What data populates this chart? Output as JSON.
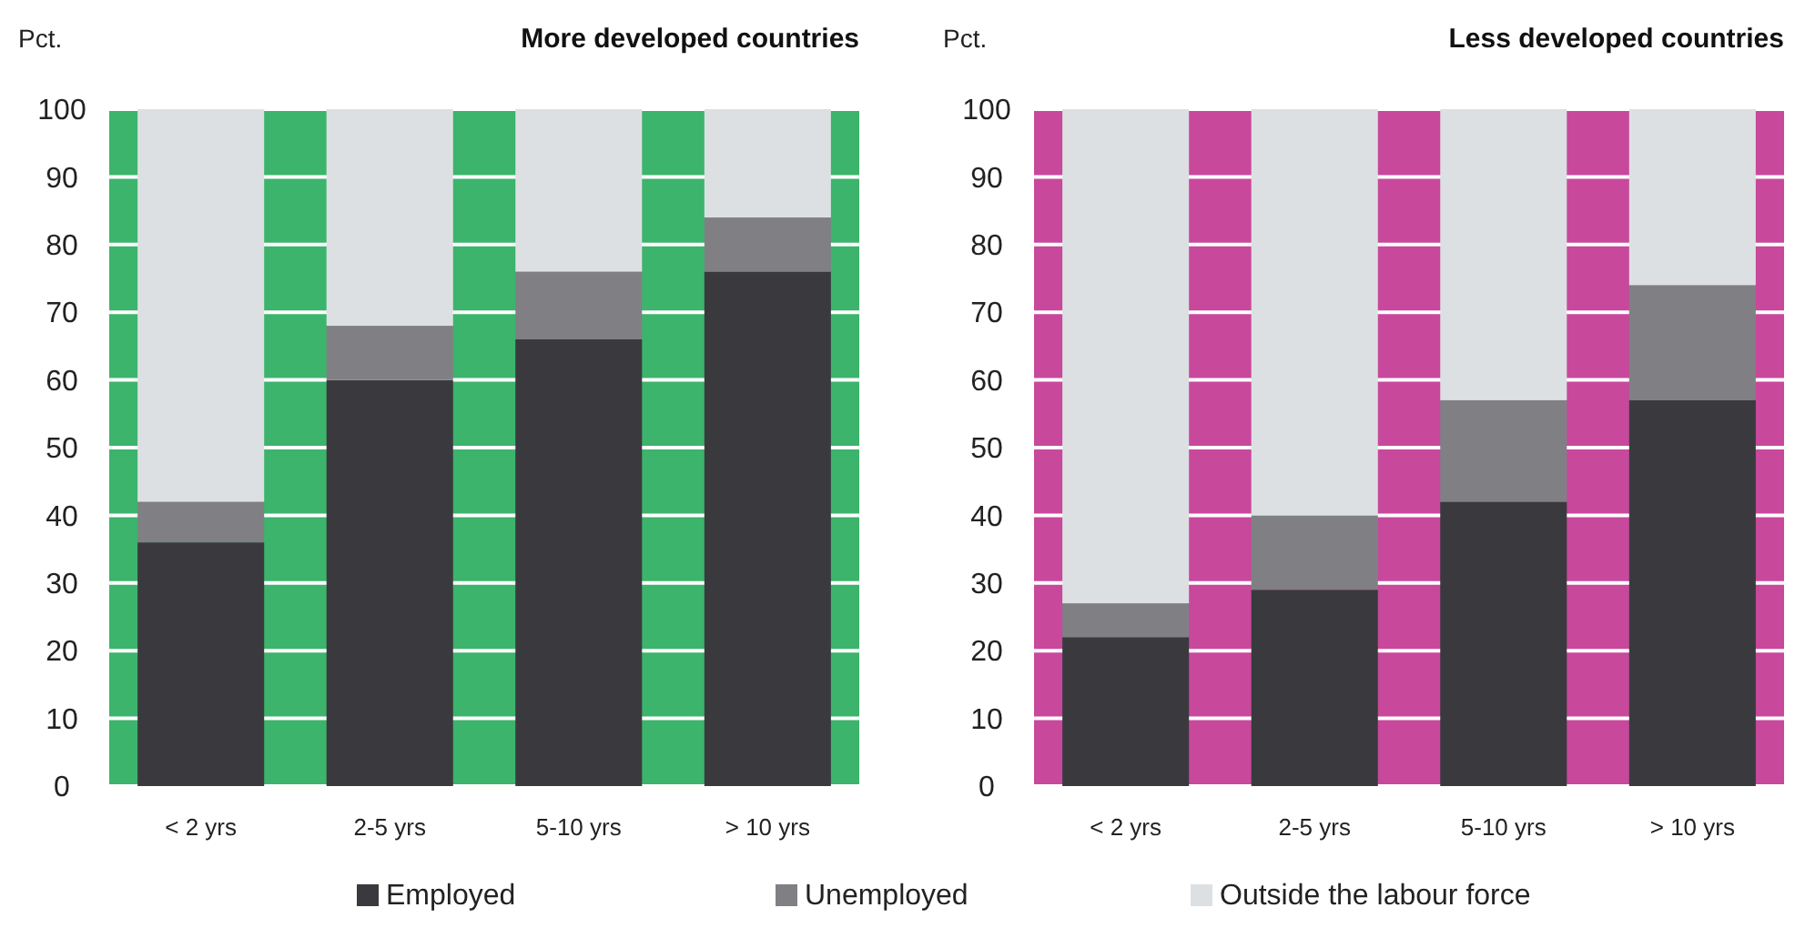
{
  "chart_data": [
    {
      "type": "bar",
      "title": "More developed countries",
      "ylabel": "Pct.",
      "categories": [
        "< 2 yrs",
        "2-5 yrs",
        "5-10 yrs",
        "> 10 yrs"
      ],
      "stacked": true,
      "ylim": [
        0,
        100
      ],
      "yticks": [
        0,
        10,
        20,
        30,
        40,
        50,
        60,
        70,
        80,
        90,
        100
      ],
      "grid": "y",
      "legend": "bottom",
      "bands": [
        {
          "axis": "y",
          "from": 0,
          "to": 100,
          "color": "#3cb46c"
        }
      ],
      "series": [
        {
          "name": "Employed",
          "color": "#3a3a3e",
          "values": [
            36,
            60,
            66,
            76
          ]
        },
        {
          "name": "Unemployed",
          "color": "#808084",
          "values": [
            6,
            8,
            10,
            8
          ]
        },
        {
          "name": "Outside the labour force",
          "color": "#dde0e2",
          "values": [
            58,
            32,
            24,
            16
          ]
        }
      ]
    },
    {
      "type": "bar",
      "title": "Less developed countries",
      "ylabel": "Pct.",
      "categories": [
        "< 2 yrs",
        "2-5 yrs",
        "5-10 yrs",
        "> 10 yrs"
      ],
      "stacked": true,
      "ylim": [
        0,
        100
      ],
      "yticks": [
        0,
        10,
        20,
        30,
        40,
        50,
        60,
        70,
        80,
        90,
        100
      ],
      "grid": "y",
      "bands": [
        {
          "axis": "y",
          "from": 0,
          "to": 100,
          "color": "#c8489c"
        }
      ],
      "series": [
        {
          "color": "#3a3a3e",
          "values": [
            22,
            29,
            42,
            57
          ]
        },
        {
          "color": "#808084",
          "values": [
            5,
            11,
            15,
            17
          ]
        },
        {
          "color": "#dde0e2",
          "values": [
            73,
            60,
            43,
            26
          ]
        }
      ]
    }
  ]
}
